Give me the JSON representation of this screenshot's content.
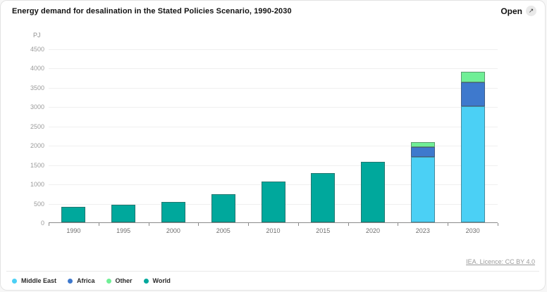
{
  "header": {
    "title": "Energy demand for desalination in the Stated Policies Scenario, 1990-2030",
    "open_label": "Open",
    "open_icon": "↗"
  },
  "attribution": {
    "text": "IEA. Licence: CC BY 4.0"
  },
  "legend": {
    "items": [
      {
        "label": "Middle East",
        "color": "#4bd0f5"
      },
      {
        "label": "Africa",
        "color": "#3e79cd"
      },
      {
        "label": "Other",
        "color": "#70ef96"
      },
      {
        "label": "World",
        "color": "#00a89c"
      }
    ]
  },
  "chart_data": {
    "type": "bar",
    "stacked": true,
    "title": "Energy demand for desalination in the Stated Policies Scenario, 1990-2030",
    "unit": "PJ",
    "categories": [
      "1990",
      "1995",
      "2000",
      "2005",
      "2010",
      "2015",
      "2020",
      "2023",
      "2030"
    ],
    "series": [
      {
        "name": "Middle East",
        "color": "#4bd0f5",
        "values": [
          0,
          0,
          0,
          0,
          0,
          0,
          0,
          1690,
          3000
        ]
      },
      {
        "name": "Africa",
        "color": "#3e79cd",
        "values": [
          0,
          0,
          0,
          0,
          0,
          0,
          0,
          260,
          620
        ]
      },
      {
        "name": "Other",
        "color": "#70ef96",
        "values": [
          0,
          0,
          0,
          0,
          0,
          0,
          0,
          120,
          280
        ]
      },
      {
        "name": "World",
        "color": "#00a89c",
        "values": [
          410,
          450,
          520,
          730,
          1050,
          1280,
          1560,
          0,
          0
        ]
      }
    ],
    "ylim": [
      0,
      4500
    ],
    "yticks": [
      4500,
      4000,
      3500,
      3000,
      2500,
      2000,
      1500,
      1000,
      500,
      0
    ],
    "grid": true,
    "legend_position": "bottom-left",
    "axis_color": "#8a8a8a",
    "gridline_color": "#efefef"
  }
}
